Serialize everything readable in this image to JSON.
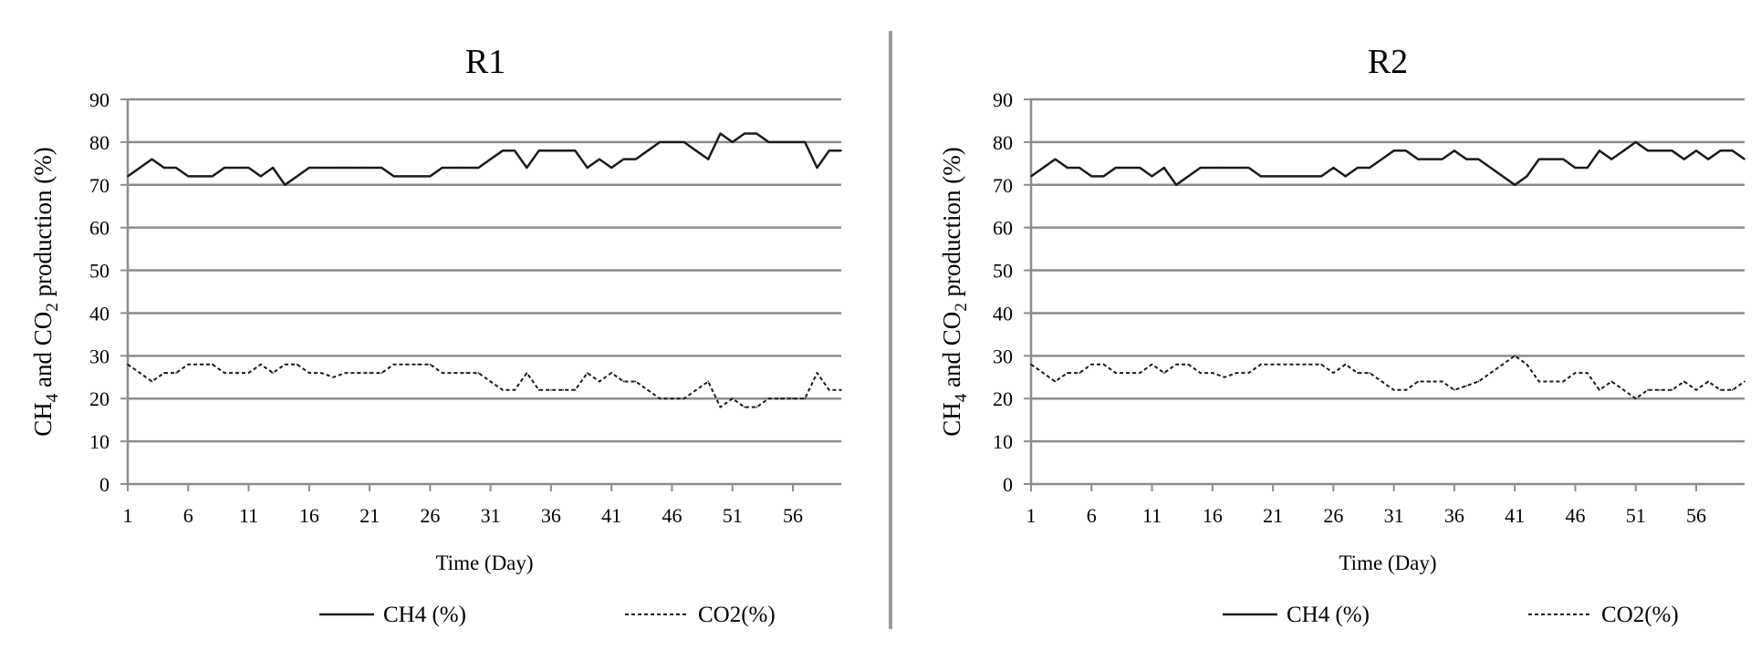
{
  "chart_data": [
    {
      "type": "line",
      "title": "R1",
      "xlabel": "Time (Day)",
      "ylabel_parts": [
        "CH",
        "4",
        " and CO",
        "2",
        " production  (%)"
      ],
      "ylim": [
        0,
        90
      ],
      "yticks": [
        0,
        10,
        20,
        30,
        40,
        50,
        60,
        70,
        80,
        90
      ],
      "xlim": [
        1,
        60
      ],
      "xticks": [
        1,
        6,
        11,
        16,
        21,
        26,
        31,
        36,
        41,
        46,
        51,
        56
      ],
      "grid": "horizontal",
      "legend_position": "bottom",
      "series": [
        {
          "name": "CH4 (%)",
          "style": "solid",
          "x": [
            1,
            2,
            3,
            4,
            5,
            6,
            7,
            8,
            9,
            10,
            11,
            12,
            13,
            14,
            15,
            16,
            17,
            18,
            19,
            20,
            21,
            22,
            23,
            24,
            25,
            26,
            27,
            28,
            29,
            30,
            31,
            32,
            33,
            34,
            35,
            36,
            37,
            38,
            39,
            40,
            41,
            42,
            43,
            44,
            45,
            46,
            47,
            48,
            49,
            50,
            51,
            52,
            53,
            54,
            55,
            56,
            57,
            58,
            59,
            60
          ],
          "values": [
            72,
            74,
            76,
            74,
            74,
            72,
            72,
            72,
            74,
            74,
            74,
            72,
            74,
            70,
            72,
            74,
            74,
            74,
            74,
            74,
            74,
            74,
            72,
            72,
            72,
            72,
            74,
            74,
            74,
            74,
            76,
            78,
            78,
            74,
            78,
            78,
            78,
            78,
            74,
            76,
            74,
            76,
            76,
            78,
            80,
            80,
            80,
            78,
            76,
            82,
            80,
            82,
            82,
            80,
            80,
            80,
            80,
            74,
            78,
            78
          ]
        },
        {
          "name": "CO2(%)",
          "style": "dashed",
          "x": [
            1,
            2,
            3,
            4,
            5,
            6,
            7,
            8,
            9,
            10,
            11,
            12,
            13,
            14,
            15,
            16,
            17,
            18,
            19,
            20,
            21,
            22,
            23,
            24,
            25,
            26,
            27,
            28,
            29,
            30,
            31,
            32,
            33,
            34,
            35,
            36,
            37,
            38,
            39,
            40,
            41,
            42,
            43,
            44,
            45,
            46,
            47,
            48,
            49,
            50,
            51,
            52,
            53,
            54,
            55,
            56,
            57,
            58,
            59,
            60
          ],
          "values": [
            28,
            26,
            24,
            26,
            26,
            28,
            28,
            28,
            26,
            26,
            26,
            28,
            26,
            28,
            28,
            26,
            26,
            25,
            26,
            26,
            26,
            26,
            28,
            28,
            28,
            28,
            26,
            26,
            26,
            26,
            24,
            22,
            22,
            26,
            22,
            22,
            22,
            22,
            26,
            24,
            26,
            24,
            24,
            22,
            20,
            20,
            20,
            22,
            24,
            18,
            20,
            18,
            18,
            20,
            20,
            20,
            20,
            26,
            22,
            22
          ]
        }
      ]
    },
    {
      "type": "line",
      "title": "R2",
      "xlabel": "Time (Day)",
      "ylabel_parts": [
        "CH",
        "4",
        " and CO",
        "2",
        " production  (%)"
      ],
      "ylim": [
        0,
        90
      ],
      "yticks": [
        0,
        10,
        20,
        30,
        40,
        50,
        60,
        70,
        80,
        90
      ],
      "xlim": [
        1,
        60
      ],
      "xticks": [
        1,
        6,
        11,
        16,
        21,
        26,
        31,
        36,
        41,
        46,
        51,
        56
      ],
      "grid": "horizontal",
      "legend_position": "bottom",
      "series": [
        {
          "name": "CH4 (%)",
          "style": "solid",
          "x": [
            1,
            2,
            3,
            4,
            5,
            6,
            7,
            8,
            9,
            10,
            11,
            12,
            13,
            14,
            15,
            16,
            17,
            18,
            19,
            20,
            21,
            22,
            23,
            24,
            25,
            26,
            27,
            28,
            29,
            30,
            31,
            32,
            33,
            34,
            35,
            36,
            37,
            38,
            39,
            40,
            41,
            42,
            43,
            44,
            45,
            46,
            47,
            48,
            49,
            50,
            51,
            52,
            53,
            54,
            55,
            56,
            57,
            58,
            59,
            60
          ],
          "values": [
            72,
            74,
            76,
            74,
            74,
            72,
            72,
            74,
            74,
            74,
            72,
            74,
            70,
            72,
            74,
            74,
            74,
            74,
            74,
            72,
            72,
            72,
            72,
            72,
            72,
            74,
            72,
            74,
            74,
            76,
            78,
            78,
            76,
            76,
            76,
            78,
            76,
            76,
            74,
            72,
            70,
            72,
            76,
            76,
            76,
            74,
            74,
            78,
            76,
            78,
            80,
            78,
            78,
            78,
            76,
            78,
            76,
            78,
            78,
            76
          ]
        },
        {
          "name": "CO2(%)",
          "style": "dashed",
          "x": [
            1,
            2,
            3,
            4,
            5,
            6,
            7,
            8,
            9,
            10,
            11,
            12,
            13,
            14,
            15,
            16,
            17,
            18,
            19,
            20,
            21,
            22,
            23,
            24,
            25,
            26,
            27,
            28,
            29,
            30,
            31,
            32,
            33,
            34,
            35,
            36,
            37,
            38,
            39,
            40,
            41,
            42,
            43,
            44,
            45,
            46,
            47,
            48,
            49,
            50,
            51,
            52,
            53,
            54,
            55,
            56,
            57,
            58,
            59,
            60
          ],
          "values": [
            28,
            26,
            24,
            26,
            26,
            28,
            28,
            26,
            26,
            26,
            28,
            26,
            28,
            28,
            26,
            26,
            25,
            26,
            26,
            28,
            28,
            28,
            28,
            28,
            28,
            26,
            28,
            26,
            26,
            24,
            22,
            22,
            24,
            24,
            24,
            22,
            23,
            24,
            26,
            28,
            30,
            28,
            24,
            24,
            24,
            26,
            26,
            22,
            24,
            22,
            20,
            22,
            22,
            22,
            24,
            22,
            24,
            22,
            22,
            24
          ]
        }
      ]
    }
  ]
}
